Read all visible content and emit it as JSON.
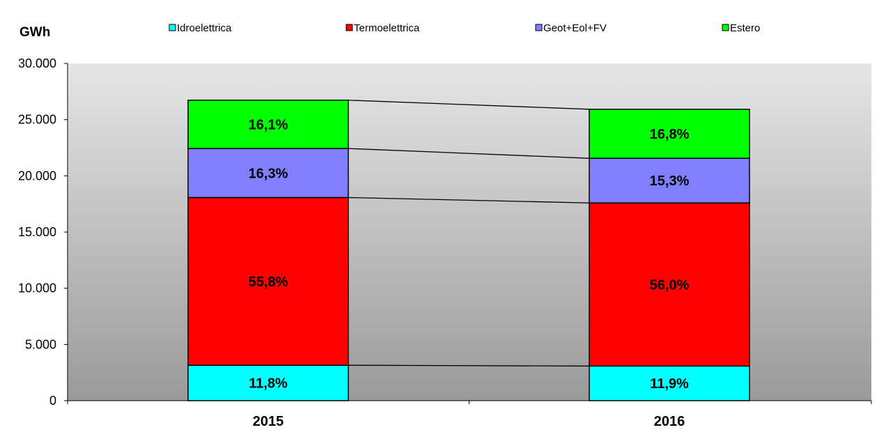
{
  "chart_data": {
    "type": "bar",
    "stacked": true,
    "categories": [
      "2015",
      "2016"
    ],
    "ylabel": "GWh",
    "ylim": [
      0,
      30000
    ],
    "yticks": [
      0,
      5000,
      10000,
      15000,
      20000,
      25000,
      30000
    ],
    "ytick_labels": [
      "0",
      "5.000",
      "10.000",
      "15.000",
      "20.000",
      "25.000",
      "30.000"
    ],
    "grid": false,
    "legend_position": "top",
    "background": "vertical gradient, light grey at top to darker grey at bottom",
    "series_connectors": true,
    "series": [
      {
        "name": "Idroelettrica",
        "color": "#00ffff",
        "values": [
          3150,
          3080
        ],
        "labels": [
          "11,8%",
          "11,9%"
        ]
      },
      {
        "name": "Termoelettrica",
        "color": "#ff0000",
        "values": [
          14920,
          14510
        ],
        "labels": [
          "55,8%",
          "56,0%"
        ]
      },
      {
        "name": "Geot+Eol+FV",
        "color": "#8080ff",
        "values": [
          4360,
          3970
        ],
        "labels": [
          "16,3%",
          "15,3%"
        ]
      },
      {
        "name": "Estero",
        "color": "#00ff00",
        "values": [
          4300,
          4360
        ],
        "labels": [
          "16,1%",
          "16,8%"
        ]
      }
    ]
  }
}
